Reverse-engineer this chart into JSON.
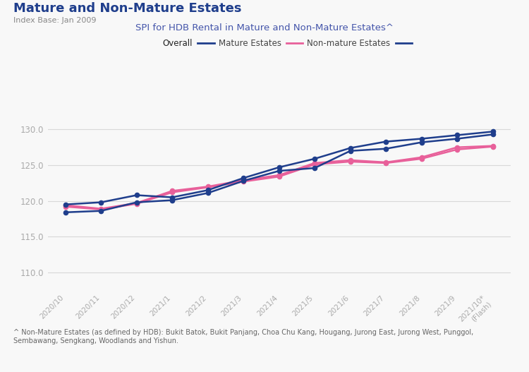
{
  "title": "Mature and Non-Mature Estates",
  "subtitle": "Index Base: Jan 2009",
  "chart_title": "SPI for HDB Rental in Mature and Non-Mature Estates^",
  "x_labels": [
    "2020/10",
    "2020/11",
    "2020/12",
    "2021/1",
    "2021/2",
    "2021/3",
    "2021/4",
    "2021/5",
    "2021/6",
    "2021/7",
    "2021/8",
    "2021/9",
    "2021/10*\n(Flash)"
  ],
  "mature_upper": [
    119.5,
    119.8,
    120.8,
    120.5,
    121.5,
    123.2,
    124.7,
    125.9,
    127.4,
    128.3,
    128.7,
    129.2,
    129.7
  ],
  "mature_lower": [
    118.4,
    118.6,
    119.8,
    120.1,
    121.1,
    122.8,
    124.2,
    124.6,
    127.0,
    127.3,
    128.2,
    128.7,
    129.3
  ],
  "non_mature_upper": [
    119.4,
    118.9,
    119.7,
    121.4,
    122.0,
    122.9,
    123.6,
    125.3,
    125.7,
    125.4,
    126.1,
    127.5,
    127.7
  ],
  "non_mature_lower": [
    119.2,
    118.8,
    119.6,
    121.2,
    121.9,
    122.7,
    123.4,
    125.1,
    125.5,
    125.3,
    125.9,
    127.2,
    127.6
  ],
  "mature_color": "#1f3e8c",
  "non_mature_color": "#e8609a",
  "background_color": "#f8f8f8",
  "plot_bg_color": "#f8f8f8",
  "grid_color": "#d8d8d8",
  "title_color": "#1f3e8c",
  "subtitle_color": "#888888",
  "chart_title_color": "#4455aa",
  "tick_color": "#aaaaaa",
  "yticks": [
    110.0,
    115.0,
    120.0,
    125.0,
    130.0
  ],
  "ylim": [
    107.5,
    132.5
  ],
  "footnote": "^ Non-Mature Estates (as defined by HDB): Bukit Batok, Bukit Panjang, Choa Chu Kang, Hougang, Jurong East, Jurong West, Punggol,\nSembawang, Sengkang, Woodlands and Yishun."
}
